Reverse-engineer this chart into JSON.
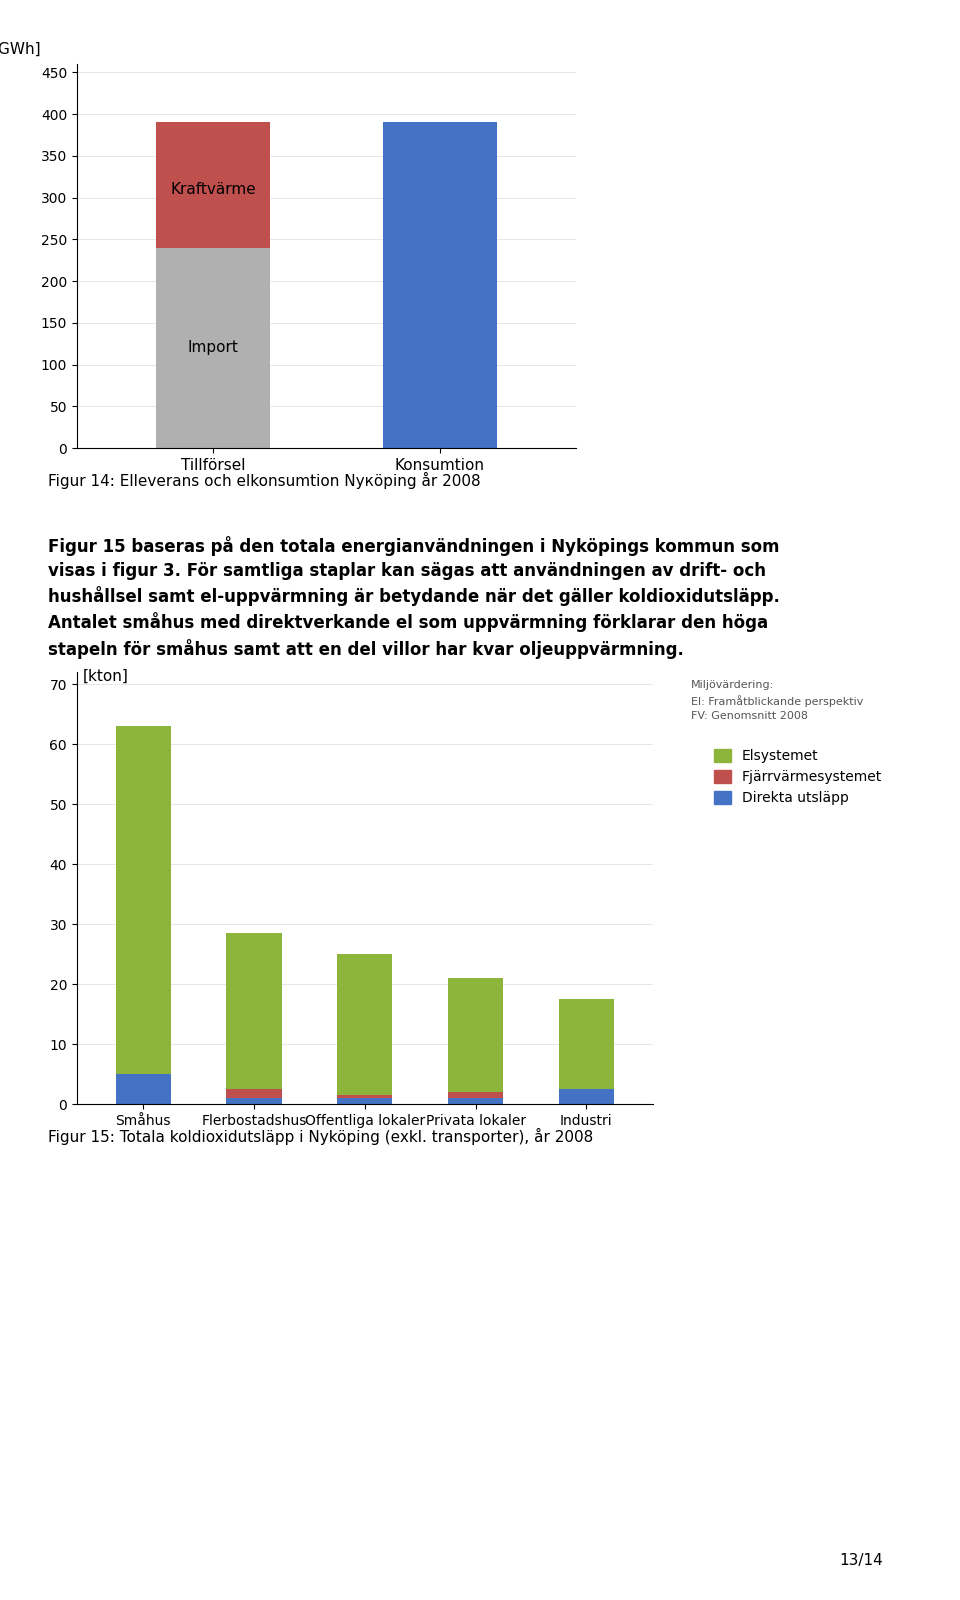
{
  "chart1": {
    "categories": [
      "Tillförsel",
      "Konsumtion"
    ],
    "import_values": [
      240,
      0
    ],
    "kraftvarme_values": [
      150,
      0
    ],
    "konsumtion_values": [
      0,
      390
    ],
    "colors": {
      "import": "#b0b0b0",
      "kraftvarme": "#c0504d",
      "konsumtion": "#4472c4"
    },
    "ylabel": "[GWh]",
    "yticks": [
      0,
      50,
      100,
      150,
      200,
      250,
      300,
      350,
      400,
      450
    ],
    "ylim": [
      0,
      460
    ],
    "bar_width": 0.5,
    "label_import": "Import",
    "label_kraftvarme": "Kraftvärme"
  },
  "text1": "Figur 14: Elleverans och elkonsumtion Nyкöping år 2008",
  "text2": "Figur 15 baseras på den totala energianvändningen i Nyköpings kommun som\nvisas i figur 3. För samtliga staplar kan sägas att användningen av drift- och\nhushållsel samt el-uppvärmning är betydande när det gäller koldioxidutsläpp.\nAntalet småhus med direktverkande el som uppvärmning förklarar den höga\nstapeln för småhus samt att en del villor har kvar oljeuppvärmning.",
  "chart2": {
    "categories": [
      "Småhus",
      "Flerbostadshus",
      "Offentliga lokaler",
      "Privata lokaler",
      "Industri"
    ],
    "elsystemet": [
      58.0,
      26.0,
      23.5,
      19.0,
      15.0
    ],
    "fjarrvarme": [
      0.0,
      1.5,
      0.5,
      1.0,
      0.0
    ],
    "direkta": [
      5.0,
      1.0,
      1.0,
      1.0,
      2.5
    ],
    "colors": {
      "elsystemet": "#8db53c",
      "fjarrvarme": "#c0504d",
      "direkta": "#4472c4"
    },
    "ylabel": "[kton]",
    "yticks": [
      0,
      10,
      20,
      30,
      40,
      50,
      60,
      70
    ],
    "ylim": [
      0,
      72
    ],
    "bar_width": 0.5,
    "legend_labels": [
      "Elsystemet",
      "Fjärrvärmesystemet",
      "Direkta utsläpp"
    ],
    "miljovard_text": "Miljövärdering:\nEl: Framåtblickande perspektiv\nFV: Genomsnitt 2008"
  },
  "text3": "Figur 15: Totala koldioxidutsläpp i Nyköping (exkl. transporter), år 2008",
  "page_number": "13/14",
  "background_color": "#ffffff"
}
